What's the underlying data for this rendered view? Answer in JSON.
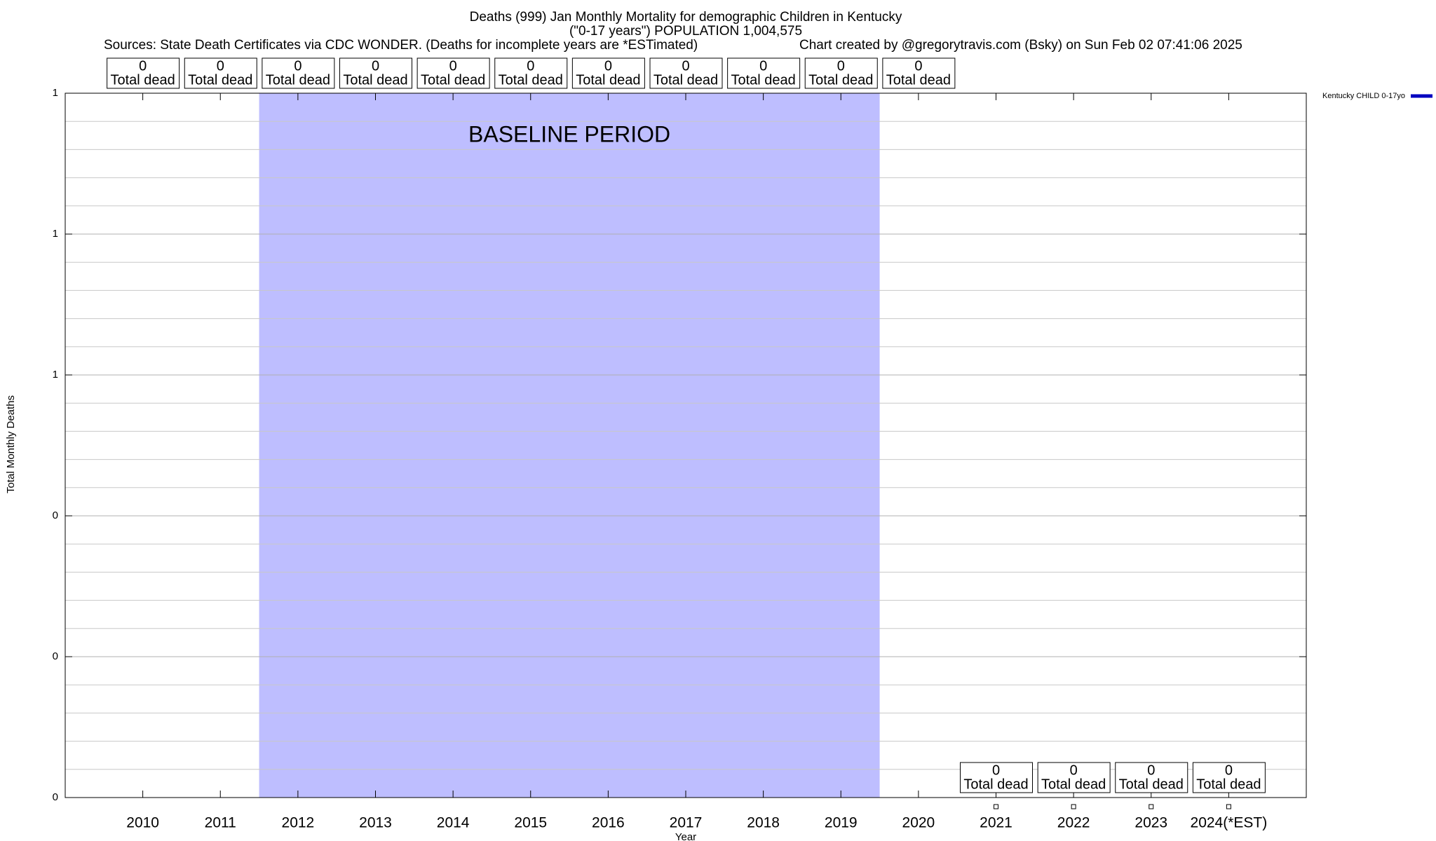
{
  "chart_data": {
    "type": "line",
    "title": "Deaths (999) Jan Monthly Mortality for demographic Children in Kentucky",
    "subtitle": "(\"0-17 years\") POPULATION 1,004,575",
    "sources": "Sources: State Death Certificates via CDC WONDER. (Deaths for incomplete years are *ESTimated)",
    "credit": "Chart created by @gregorytravis.com (Bsky) on Sun Feb 02 07:41:06 2025",
    "x_label": "Year",
    "y_label": "Total Monthly Deaths",
    "categories": [
      "2010",
      "2011",
      "2012",
      "2013",
      "2014",
      "2015",
      "2016",
      "2017",
      "2018",
      "2019",
      "2020",
      "2021",
      "2022",
      "2023",
      "2024(*EST)"
    ],
    "series": [
      {
        "name": "Kentucky CHILD 0-17yo",
        "color": "#0000c0",
        "values": [
          0,
          0,
          0,
          0,
          0,
          0,
          0,
          0,
          0,
          0,
          0,
          0,
          0,
          0,
          0
        ]
      }
    ],
    "value_label_suffix": "Total dead",
    "baseline": {
      "label": "BASELINE PERIOD",
      "from": "2012",
      "to": "2019",
      "color": "#bebeff"
    },
    "ylim": [
      0,
      1
    ],
    "yticks": [
      {
        "value": 0,
        "label": "0"
      },
      {
        "value": 0.2,
        "label": "0"
      },
      {
        "value": 0.4,
        "label": "0"
      },
      {
        "value": 0.6,
        "label": "1"
      },
      {
        "value": 0.8,
        "label": "1"
      },
      {
        "value": 1,
        "label": "1"
      }
    ],
    "y_minor_per_major": 5,
    "grid": true,
    "legend": "top-right"
  }
}
